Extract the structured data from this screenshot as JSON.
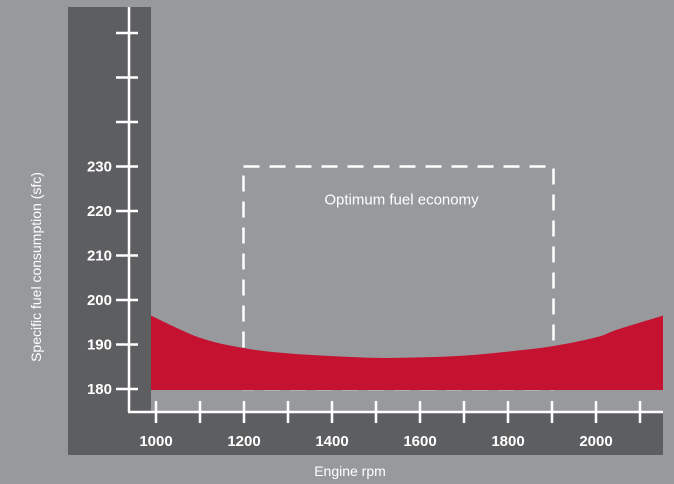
{
  "chart_data": {
    "type": "area",
    "title": "",
    "xlabel": "Engine rpm",
    "ylabel": "Specific fuel consumption (sfc)",
    "x_ticks": [
      1000,
      1200,
      1400,
      1600,
      1800,
      2000
    ],
    "y_ticks": [
      180,
      190,
      200,
      210,
      220,
      230
    ],
    "xlim": [
      1000,
      2100
    ],
    "ylim": [
      179,
      260
    ],
    "grid": false,
    "series": [
      {
        "x": [
          1000,
          1100,
          1200,
          1300,
          1400,
          1500,
          1600,
          1700,
          1800,
          1900,
          2000,
          2050,
          2100
        ],
        "y": [
          196.5,
          191.5,
          189.2,
          188.0,
          187.4,
          187.0,
          187.1,
          187.5,
          188.4,
          189.6,
          191.6,
          193.4,
          196.5
        ],
        "fill_base": 180,
        "color": "#c41230"
      }
    ],
    "annotations": [
      {
        "text": "Optimum fuel economy",
        "region": {
          "x": [
            1200,
            1900
          ],
          "y": [
            180,
            230
          ]
        },
        "style": "dashed-box"
      }
    ],
    "colors": {
      "background": "#97999c",
      "plot_panel": "#5d5e60",
      "axis": "#ffffff",
      "curve": "#c41230"
    }
  }
}
